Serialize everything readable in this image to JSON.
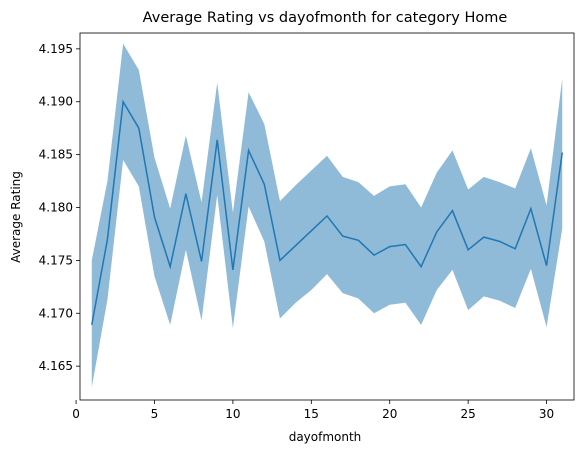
{
  "chart_data": {
    "type": "line",
    "title": "Average Rating vs dayofmonth for category Home",
    "xlabel": "dayofmonth",
    "ylabel": "Average Rating",
    "xlim": [
      0.25,
      31.75
    ],
    "ylim": [
      4.1618,
      4.1965
    ],
    "xticks": [
      0,
      5,
      10,
      15,
      20,
      25,
      30
    ],
    "yticks": [
      4.165,
      4.17,
      4.175,
      4.18,
      4.185,
      4.19,
      4.195
    ],
    "grid": false,
    "series": [
      {
        "color": "#1f77b4",
        "band_color": "#1f77b4",
        "band_opacity": 0.5,
        "x": [
          1,
          2,
          3,
          4,
          5,
          6,
          7,
          8,
          9,
          10,
          11,
          12,
          13,
          14,
          15,
          16,
          17,
          18,
          19,
          20,
          21,
          22,
          23,
          24,
          25,
          26,
          27,
          28,
          29,
          30,
          31
        ],
        "y": [
          4.1689,
          4.177,
          4.19,
          4.1875,
          4.1791,
          4.1744,
          4.1813,
          4.1749,
          4.1864,
          4.1741,
          4.1854,
          4.1822,
          4.175,
          4.1764,
          4.1778,
          4.1792,
          4.1773,
          4.1769,
          4.1755,
          4.1763,
          4.1765,
          4.1744,
          4.1777,
          4.1797,
          4.176,
          4.1772,
          4.1768,
          4.1761,
          4.1799,
          4.1745,
          4.1852
        ],
        "lower": [
          4.163,
          4.1713,
          4.1845,
          4.182,
          4.1735,
          4.1689,
          4.176,
          4.1693,
          4.1812,
          4.1686,
          4.1801,
          4.1768,
          4.1695,
          4.171,
          4.1722,
          4.1737,
          4.1719,
          4.1714,
          4.17,
          4.1708,
          4.171,
          4.1689,
          4.1722,
          4.1741,
          4.1703,
          4.1716,
          4.1712,
          4.1705,
          4.1742,
          4.1687,
          4.178
        ],
        "upper": [
          4.175,
          4.1825,
          4.1955,
          4.193,
          4.1847,
          4.1799,
          4.1868,
          4.1805,
          4.1918,
          4.1795,
          4.1909,
          4.1879,
          4.1806,
          4.1821,
          4.1835,
          4.1849,
          4.1829,
          4.1824,
          4.1811,
          4.182,
          4.1822,
          4.18,
          4.1833,
          4.1854,
          4.1817,
          4.1829,
          4.1824,
          4.1818,
          4.1856,
          4.1802,
          4.1922
        ]
      }
    ]
  }
}
